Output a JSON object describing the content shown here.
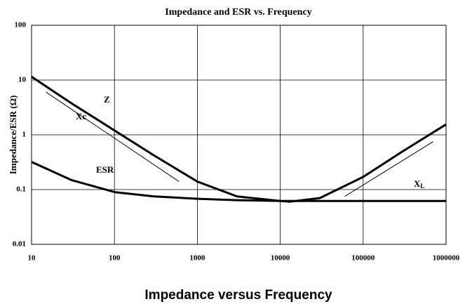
{
  "chart_data": {
    "type": "line",
    "title": "Impedance and ESR vs. Frequency",
    "y_label": "Impedance/ESR (Ω)",
    "caption": "Impedance versus Frequency",
    "xscale": "log",
    "yscale": "log",
    "grid": true,
    "xlim": [
      10,
      1000000
    ],
    "xticks": [
      10,
      100,
      1000,
      10000,
      100000,
      1000000
    ],
    "ylim": [
      0.01,
      100
    ],
    "yticks": [
      0.01,
      0.1,
      1,
      10,
      100
    ],
    "series": [
      {
        "name": "Z",
        "color": "#000000",
        "weight": "thick",
        "x": [
          10,
          30,
          100,
          300,
          1000,
          3000,
          10000,
          13000,
          30000,
          100000,
          300000,
          1000000
        ],
        "values": [
          11.5,
          3.8,
          1.2,
          0.42,
          0.14,
          0.075,
          0.062,
          0.06,
          0.07,
          0.17,
          0.5,
          1.55
        ]
      },
      {
        "name": "ESR",
        "color": "#000000",
        "weight": "thick",
        "x": [
          10,
          30,
          100,
          300,
          1000,
          3000,
          10000,
          100000,
          1000000
        ],
        "values": [
          0.32,
          0.15,
          0.09,
          0.075,
          0.068,
          0.064,
          0.062,
          0.062,
          0.062
        ]
      },
      {
        "name": "Xc",
        "color": "#000000",
        "weight": "thin",
        "x": [
          15,
          600
        ],
        "values": [
          6,
          0.14
        ]
      },
      {
        "name": "X",
        "subscript": "L",
        "color": "#000000",
        "weight": "thin",
        "x": [
          60000,
          700000
        ],
        "values": [
          0.075,
          0.75
        ]
      }
    ]
  }
}
